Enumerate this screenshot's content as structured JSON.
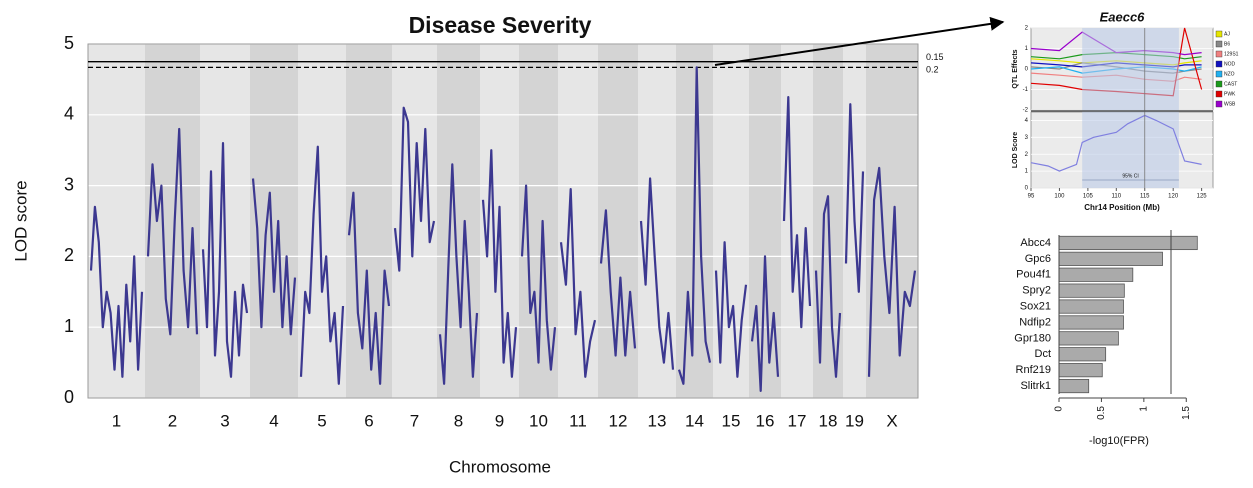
{
  "chart_data": [
    {
      "type": "line",
      "title": "Disease Severity",
      "xlabel": "Chromosome",
      "ylabel": "LOD score",
      "categories": [
        "1",
        "2",
        "3",
        "4",
        "5",
        "6",
        "7",
        "8",
        "9",
        "10",
        "11",
        "12",
        "13",
        "14",
        "15",
        "16",
        "17",
        "18",
        "19",
        "X"
      ],
      "color": "#3c3890",
      "ylim": [
        0,
        5
      ],
      "yticks": [
        0,
        1,
        2,
        3,
        4,
        5
      ],
      "grid": true,
      "thresholds": [
        {
          "value": 4.75,
          "label": "0.15"
        },
        {
          "value": 4.67,
          "label": "0.2"
        }
      ],
      "values": [
        [
          1.8,
          2.7,
          2.2,
          1.0,
          1.5,
          1.2,
          0.4,
          1.3,
          0.3,
          1.6,
          0.8,
          2.0,
          0.4,
          1.5
        ],
        [
          2.0,
          3.3,
          2.5,
          3.0,
          1.4,
          0.9,
          2.5,
          3.8,
          1.8,
          1.0,
          2.4,
          0.9
        ],
        [
          2.1,
          1.0,
          3.2,
          0.6,
          1.5,
          3.6,
          0.8,
          0.3,
          1.5,
          0.6,
          1.6,
          1.2
        ],
        [
          3.1,
          2.4,
          1.0,
          2.3,
          2.9,
          1.5,
          2.5,
          1.0,
          2.0,
          0.9,
          1.7
        ],
        [
          0.3,
          1.5,
          1.2,
          2.6,
          3.55,
          1.5,
          2.0,
          0.8,
          1.2,
          0.2,
          1.3
        ],
        [
          2.3,
          2.9,
          1.2,
          0.7,
          1.8,
          0.4,
          1.2,
          0.2,
          1.8,
          1.3
        ],
        [
          2.4,
          1.8,
          4.1,
          3.9,
          2.0,
          3.6,
          2.5,
          3.8,
          2.2,
          2.5
        ],
        [
          0.9,
          0.2,
          1.8,
          3.3,
          2.0,
          1.0,
          2.5,
          1.5,
          0.3,
          1.2
        ],
        [
          2.8,
          2.0,
          3.5,
          1.5,
          2.7,
          0.5,
          1.2,
          0.3,
          1.0
        ],
        [
          2.0,
          3.0,
          1.2,
          1.5,
          0.5,
          2.5,
          1.1,
          0.4,
          1.0
        ],
        [
          2.2,
          1.6,
          2.95,
          0.9,
          1.5,
          0.3,
          0.8,
          1.1
        ],
        [
          1.9,
          2.65,
          1.5,
          0.6,
          1.7,
          0.6,
          1.5,
          0.7
        ],
        [
          2.5,
          1.6,
          3.1,
          2.0,
          1.0,
          0.5,
          1.2,
          0.4
        ],
        [
          0.4,
          0.2,
          1.5,
          0.6,
          4.67,
          2.0,
          0.8,
          0.5
        ],
        [
          1.8,
          0.5,
          2.2,
          1.0,
          1.3,
          0.3,
          1.1,
          1.6
        ],
        [
          0.8,
          1.3,
          0.1,
          2.0,
          0.5,
          1.2,
          0.3
        ],
        [
          2.5,
          4.25,
          1.5,
          2.3,
          1.0,
          2.4,
          1.3
        ],
        [
          1.8,
          0.5,
          2.6,
          2.85,
          1.0,
          0.3,
          1.2
        ],
        [
          1.9,
          4.15,
          2.5,
          1.5,
          3.2
        ],
        [
          0.3,
          2.8,
          3.25,
          2.0,
          1.2,
          2.7,
          0.6,
          1.5,
          1.3,
          1.8
        ]
      ]
    },
    {
      "type": "multi-panel",
      "title": "Eaecc6",
      "xlabel": "Chr14 Position (Mb)",
      "xlim": [
        95,
        127
      ],
      "xticks": [
        95,
        100,
        105,
        110,
        115,
        120,
        125
      ],
      "peak": 115,
      "panels": [
        {
          "ylabel": "QTL Effects",
          "ylim": [
            -2,
            2
          ],
          "yticks": [
            -2,
            -1,
            0,
            1,
            2
          ],
          "x": [
            95,
            100,
            104,
            110,
            115,
            120,
            122,
            125
          ],
          "series": [
            {
              "name": "AJ",
              "color": "#e6e600",
              "values": [
                0.5,
                0.4,
                0.3,
                0.4,
                0.3,
                0.2,
                0.3,
                0.4
              ]
            },
            {
              "name": "B6",
              "color": "#888888",
              "values": [
                0.1,
                0.0,
                0.3,
                0.1,
                -0.1,
                -0.2,
                -0.1,
                0.0
              ]
            },
            {
              "name": "129S1",
              "color": "#f08080",
              "values": [
                -0.2,
                -0.3,
                -0.4,
                -0.3,
                -0.5,
                -0.6,
                -0.4,
                -0.5
              ]
            },
            {
              "name": "NOD",
              "color": "#1010c0",
              "values": [
                0.3,
                0.2,
                0.1,
                0.3,
                0.2,
                0.1,
                0.2,
                0.2
              ]
            },
            {
              "name": "NZO",
              "color": "#20b0f0",
              "values": [
                0.0,
                0.1,
                -0.2,
                0.0,
                0.1,
                0.0,
                -0.1,
                0.1
              ]
            },
            {
              "name": "CAST",
              "color": "#1a9a1a",
              "values": [
                0.6,
                0.5,
                0.7,
                0.8,
                0.7,
                0.6,
                0.5,
                0.6
              ]
            },
            {
              "name": "PWK",
              "color": "#e00000",
              "values": [
                -0.7,
                -0.8,
                -1.0,
                -1.1,
                -1.2,
                -1.3,
                2.0,
                -1.0
              ]
            },
            {
              "name": "WSB",
              "color": "#9900cc",
              "values": [
                1.0,
                0.9,
                1.8,
                0.8,
                0.9,
                0.8,
                0.7,
                0.8
              ]
            }
          ]
        },
        {
          "ylabel": "LOD Score",
          "ylim": [
            0,
            4.5
          ],
          "yticks": [
            0,
            1,
            2,
            3,
            4
          ],
          "color": "#8080e0",
          "ci": [
            104,
            121
          ],
          "ci_label": "95% CI",
          "x": [
            95,
            98,
            100,
            103,
            104,
            106,
            110,
            112,
            115,
            117,
            120,
            122,
            125
          ],
          "values": [
            1.5,
            1.3,
            1.0,
            1.4,
            2.7,
            3.0,
            3.3,
            3.8,
            4.3,
            4.0,
            3.5,
            1.6,
            1.4
          ]
        }
      ]
    },
    {
      "type": "barh",
      "xlabel": "-log10(FPR)",
      "color": "#aaaaaa",
      "threshold": 1.32,
      "categories": [
        "Abcc4",
        "Gpc6",
        "Pou4f1",
        "Spry2",
        "Sox21",
        "Ndfip2",
        "Gpr180",
        "Dct",
        "Rnf219",
        "Slitrk1"
      ],
      "values": [
        1.63,
        1.22,
        0.87,
        0.77,
        0.76,
        0.76,
        0.7,
        0.55,
        0.51,
        0.35
      ],
      "xlim": [
        0,
        1.65
      ],
      "xticks": [
        0,
        0.5,
        1,
        1.5
      ]
    }
  ]
}
